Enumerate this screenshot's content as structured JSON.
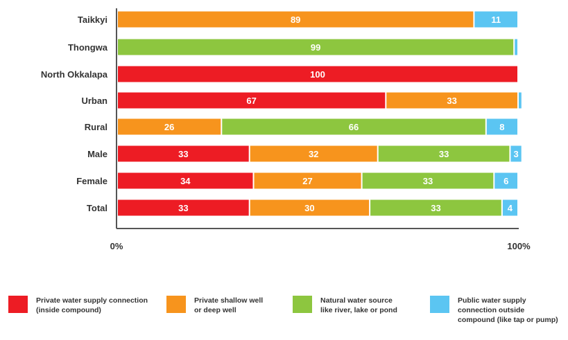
{
  "chart_data": {
    "type": "bar",
    "orientation": "horizontal",
    "stacked": true,
    "categories": [
      "Taikkyi",
      "Thongwa",
      "North Okkalapa",
      "Urban",
      "Rural",
      "Male",
      "Female",
      "Total"
    ],
    "series": [
      {
        "name": "Private water supply connection (inside compound)",
        "color": "#ed1c24",
        "values": [
          0,
          0,
          100,
          67,
          0,
          33,
          34,
          33
        ],
        "labels": [
          "",
          "",
          "100",
          "67",
          "",
          "33",
          "34",
          "33"
        ]
      },
      {
        "name": "Private shallow well or deep well",
        "color": "#f7941d",
        "values": [
          89,
          0,
          0,
          33,
          26,
          32,
          27,
          30
        ],
        "labels": [
          "89",
          "",
          "",
          "33",
          "26",
          "32",
          "27",
          "30"
        ]
      },
      {
        "name": "Natural water source like river, lake or pond",
        "color": "#8dc63f",
        "values": [
          0,
          99,
          0,
          0,
          66,
          33,
          33,
          33
        ],
        "labels": [
          "",
          "99",
          "",
          "",
          "66",
          "33",
          "33",
          "33"
        ]
      },
      {
        "name": "Public water supply connection outside compound (like tap or pump)",
        "color": "#5bc5f2",
        "values": [
          11,
          1,
          0,
          1,
          8,
          3,
          6,
          4
        ],
        "labels": [
          "11",
          "",
          "",
          "",
          "8",
          "3",
          "6",
          "4"
        ]
      }
    ],
    "xlim": [
      0,
      100
    ],
    "x_tick_labels": [
      "0%",
      "100%"
    ],
    "grid": false,
    "legend_position": "bottom"
  },
  "legend": [
    {
      "line1": "Private water supply connection",
      "line2": "(inside compound)",
      "line3": ""
    },
    {
      "line1": "Private shallow well",
      "line2": "or deep well",
      "line3": ""
    },
    {
      "line1": "Natural water source",
      "line2": "like river, lake or pond",
      "line3": ""
    },
    {
      "line1": "Public water supply",
      "line2": "connection outside",
      "line3": "compound (like tap or pump)"
    }
  ]
}
